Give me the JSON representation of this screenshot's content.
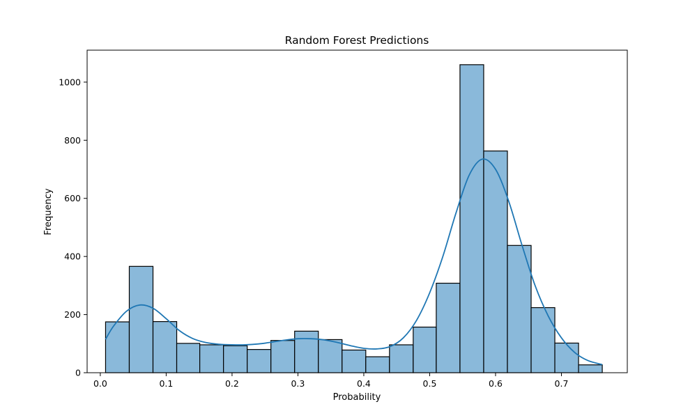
{
  "chart_data": {
    "type": "bar",
    "title": "Random Forest Predictions",
    "xlabel": "Probability",
    "ylabel": "Frequency",
    "xlim": [
      -0.02,
      0.8
    ],
    "ylim": [
      0,
      1110
    ],
    "xticks": [
      0.0,
      0.1,
      0.2,
      0.3,
      0.4,
      0.5,
      0.6,
      0.7
    ],
    "xtick_labels": [
      "0.0",
      "0.1",
      "0.2",
      "0.3",
      "0.4",
      "0.5",
      "0.6",
      "0.7"
    ],
    "yticks": [
      0,
      200,
      400,
      600,
      800,
      1000
    ],
    "ytick_labels": [
      "0",
      "200",
      "400",
      "600",
      "800",
      "1000"
    ],
    "bin_edges": [
      0.008,
      0.044,
      0.08,
      0.116,
      0.151,
      0.187,
      0.223,
      0.259,
      0.295,
      0.331,
      0.367,
      0.403,
      0.439,
      0.475,
      0.51,
      0.546,
      0.582,
      0.618,
      0.654,
      0.69,
      0.726,
      0.762
    ],
    "values": [
      175,
      366,
      176,
      101,
      96,
      93,
      80,
      111,
      143,
      114,
      78,
      55,
      96,
      157,
      308,
      1060,
      763,
      438,
      224,
      102,
      27
    ],
    "kde": {
      "x": [
        0.008,
        0.02,
        0.04,
        0.06,
        0.08,
        0.1,
        0.12,
        0.14,
        0.16,
        0.18,
        0.2,
        0.22,
        0.24,
        0.26,
        0.28,
        0.3,
        0.32,
        0.34,
        0.36,
        0.38,
        0.4,
        0.42,
        0.44,
        0.46,
        0.48,
        0.5,
        0.52,
        0.54,
        0.56,
        0.58,
        0.6,
        0.62,
        0.64,
        0.66,
        0.68,
        0.7,
        0.72,
        0.74,
        0.762
      ],
      "y": [
        115,
        160,
        212,
        233,
        222,
        186,
        145,
        118,
        104,
        98,
        96,
        96,
        99,
        105,
        112,
        117,
        117,
        113,
        104,
        93,
        84,
        82,
        90,
        120,
        180,
        275,
        400,
        550,
        680,
        735,
        700,
        590,
        440,
        300,
        195,
        120,
        70,
        42,
        28
      ]
    },
    "grid": false,
    "legend": "none"
  }
}
